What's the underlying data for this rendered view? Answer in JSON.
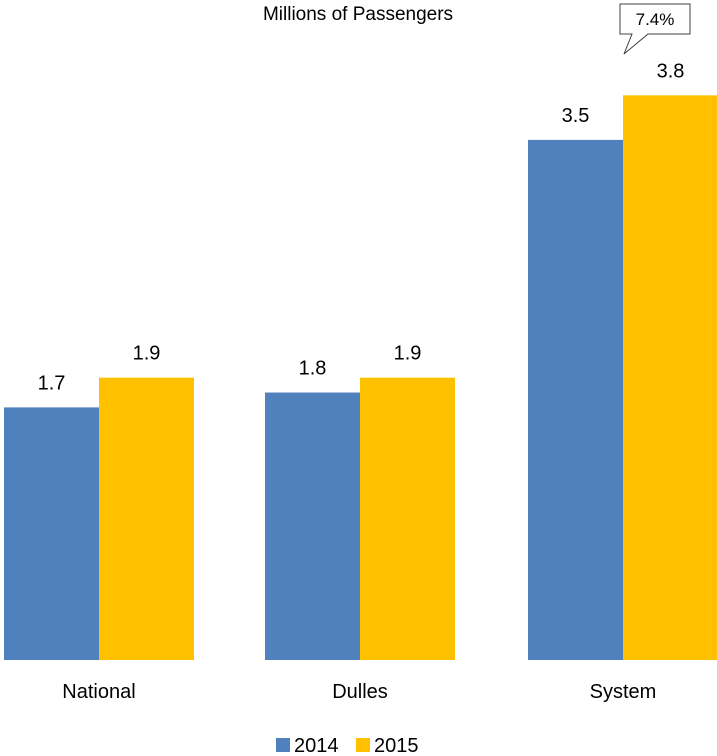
{
  "chart_data": {
    "type": "bar",
    "title": "Millions of Passengers",
    "categories": [
      "National",
      "Dulles",
      "System"
    ],
    "series": [
      {
        "name": "2014",
        "values": [
          1.7,
          1.8,
          3.5
        ],
        "color": "#4f81bd"
      },
      {
        "name": "2015",
        "values": [
          1.9,
          1.9,
          3.8
        ],
        "color": "#ffc000"
      }
    ],
    "callout": {
      "text": "7.4%",
      "category": "System",
      "series": "2015"
    },
    "legend_position": "bottom",
    "grid": false
  }
}
